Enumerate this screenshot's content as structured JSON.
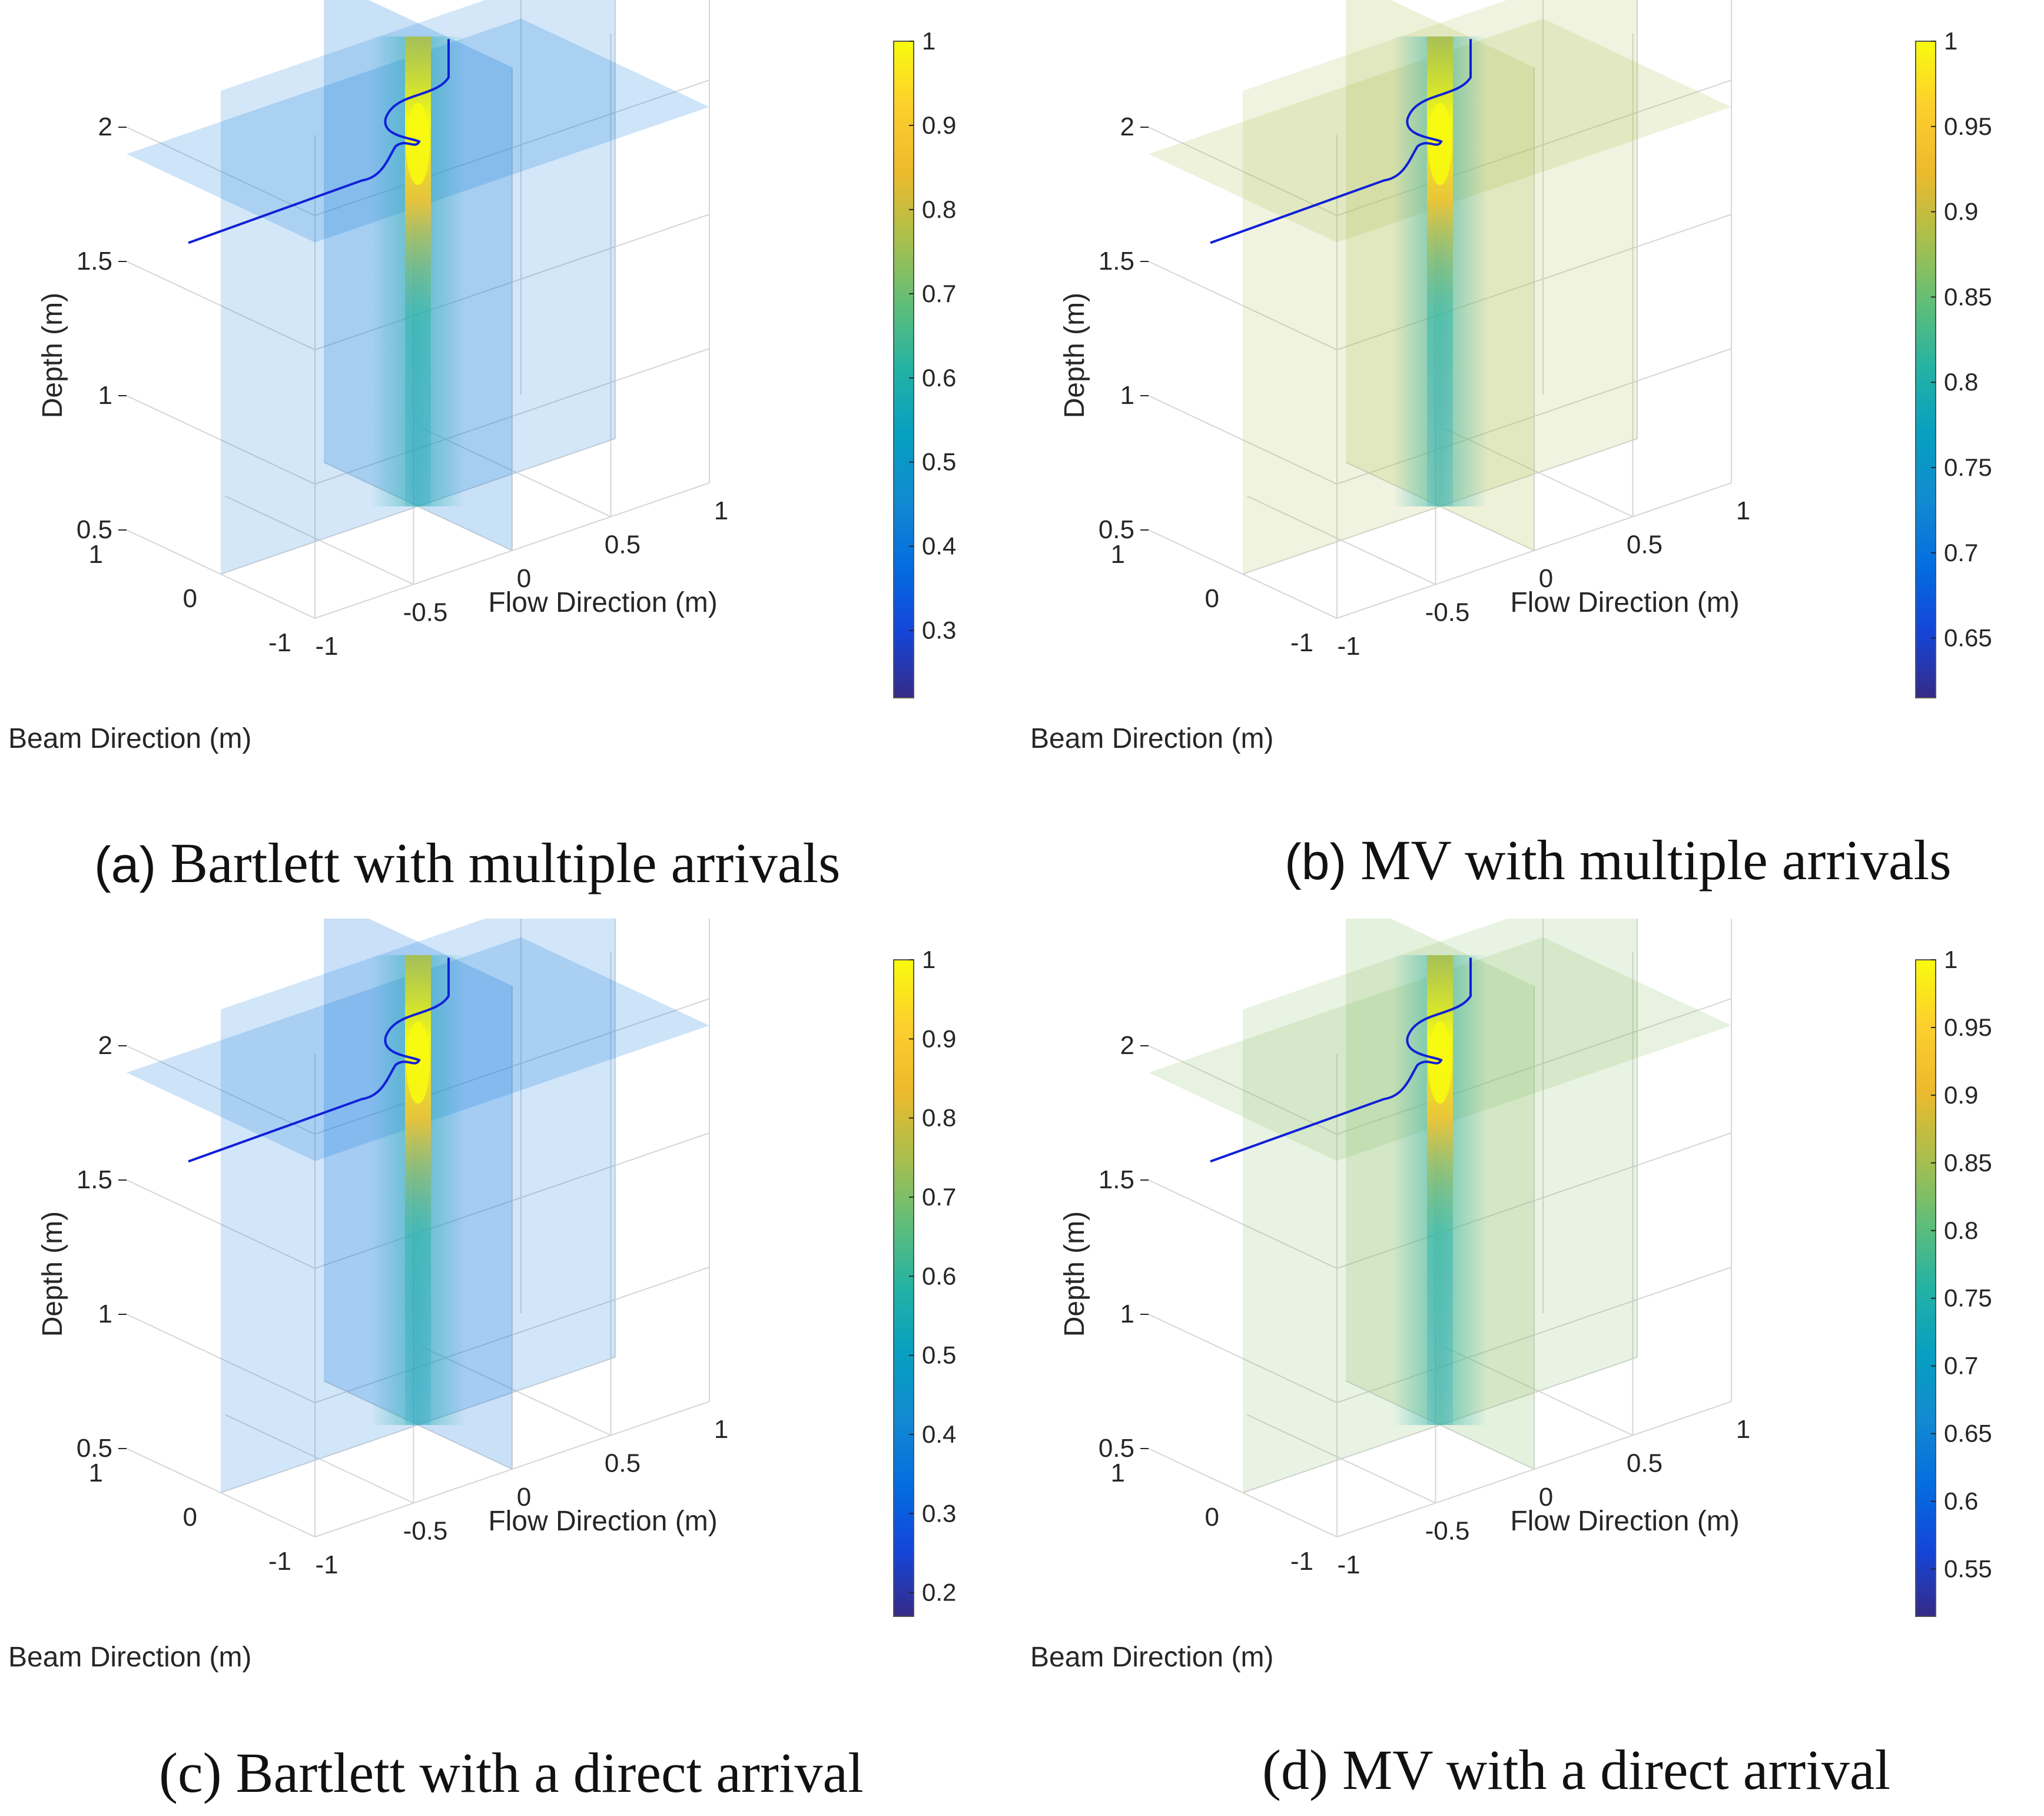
{
  "panels": [
    {
      "id": "a",
      "caption_tag": "(a)",
      "caption_text": "Bartlett with multiple arrivals",
      "chart_data": {
        "type": "heatmap",
        "subtype": "3d-slice",
        "xlabel": "Beam Direction (m)",
        "ylabel": "Flow Direction (m)",
        "zlabel": "Depth (m)",
        "beam_ticks": [
          "1",
          "0",
          "-1"
        ],
        "flow_ticks": [
          "-1",
          "-0.5",
          "0",
          "0.5",
          "1"
        ],
        "depth_ticks": [
          "0.5",
          "1",
          "1.5",
          "2"
        ],
        "xlim": [
          -1,
          1
        ],
        "ylim": [
          -1,
          1
        ],
        "zlim": [
          0.5,
          2.3
        ],
        "colormap": "parula",
        "colorbar_ticks": [
          "1",
          "0.9",
          "0.8",
          "0.7",
          "0.6",
          "0.5",
          "0.4",
          "0.3"
        ],
        "colorbar_range": [
          0.22,
          1
        ],
        "background_level": 0.24,
        "peak": {
          "beam": 0,
          "flow": 0,
          "depth": 1.85,
          "value": 1
        },
        "path_color": "#1020d8"
      }
    },
    {
      "id": "b",
      "caption_tag": "(b)",
      "caption_text": "MV with multiple arrivals",
      "chart_data": {
        "type": "heatmap",
        "subtype": "3d-slice",
        "xlabel": "Beam Direction (m)",
        "ylabel": "Flow Direction (m)",
        "zlabel": "Depth (m)",
        "beam_ticks": [
          "1",
          "0",
          "-1"
        ],
        "flow_ticks": [
          "-1",
          "-0.5",
          "0",
          "0.5",
          "1"
        ],
        "depth_ticks": [
          "0.5",
          "1",
          "1.5",
          "2"
        ],
        "xlim": [
          -1,
          1
        ],
        "ylim": [
          -1,
          1
        ],
        "zlim": [
          0.5,
          2.3
        ],
        "colormap": "parula",
        "colorbar_ticks": [
          "1",
          "0.95",
          "0.9",
          "0.85",
          "0.8",
          "0.75",
          "0.7",
          "0.65"
        ],
        "colorbar_range": [
          0.615,
          1
        ],
        "background_level": 0.7,
        "peak": {
          "beam": 0,
          "flow": 0,
          "depth": 1.85,
          "value": 1
        },
        "path_color": "#1020d8"
      }
    },
    {
      "id": "c",
      "caption_tag": "",
      "caption_text": "(c) Bartlett with a direct arrival",
      "chart_data": {
        "type": "heatmap",
        "subtype": "3d-slice",
        "xlabel": "Beam Direction (m)",
        "ylabel": "Flow Direction (m)",
        "zlabel": "Depth (m)",
        "beam_ticks": [
          "1",
          "0",
          "-1"
        ],
        "flow_ticks": [
          "-1",
          "-0.5",
          "0",
          "0.5",
          "1"
        ],
        "depth_ticks": [
          "0.5",
          "1",
          "1.5",
          "2"
        ],
        "xlim": [
          -1,
          1
        ],
        "ylim": [
          -1,
          1
        ],
        "zlim": [
          0.5,
          2.3
        ],
        "colormap": "parula",
        "colorbar_ticks": [
          "1",
          "0.9",
          "0.8",
          "0.7",
          "0.6",
          "0.5",
          "0.4",
          "0.3",
          "0.2"
        ],
        "colorbar_range": [
          0.17,
          1
        ],
        "background_level": 0.22,
        "peak": {
          "beam": 0,
          "flow": 0,
          "depth": 1.85,
          "value": 1
        },
        "path_color": "#1020d8"
      }
    },
    {
      "id": "d",
      "caption_tag": "",
      "caption_text": "(d) MV with a direct arrival",
      "chart_data": {
        "type": "heatmap",
        "subtype": "3d-slice",
        "xlabel": "Beam Direction (m)",
        "ylabel": "Flow Direction (m)",
        "zlabel": "Depth (m)",
        "beam_ticks": [
          "1",
          "0",
          "-1"
        ],
        "flow_ticks": [
          "-1",
          "-0.5",
          "0",
          "0.5",
          "1"
        ],
        "depth_ticks": [
          "0.5",
          "1",
          "1.5",
          "2"
        ],
        "xlim": [
          -1,
          1
        ],
        "ylim": [
          -1,
          1
        ],
        "zlim": [
          0.5,
          2.3
        ],
        "colormap": "parula",
        "colorbar_ticks": [
          "1",
          "0.95",
          "0.9",
          "0.85",
          "0.8",
          "0.75",
          "0.7",
          "0.65",
          "0.6",
          "0.55"
        ],
        "colorbar_range": [
          0.515,
          1
        ],
        "background_level": 0.65,
        "peak": {
          "beam": 0,
          "flow": 0,
          "depth": 1.85,
          "value": 1
        },
        "path_color": "#1020d8"
      }
    }
  ]
}
